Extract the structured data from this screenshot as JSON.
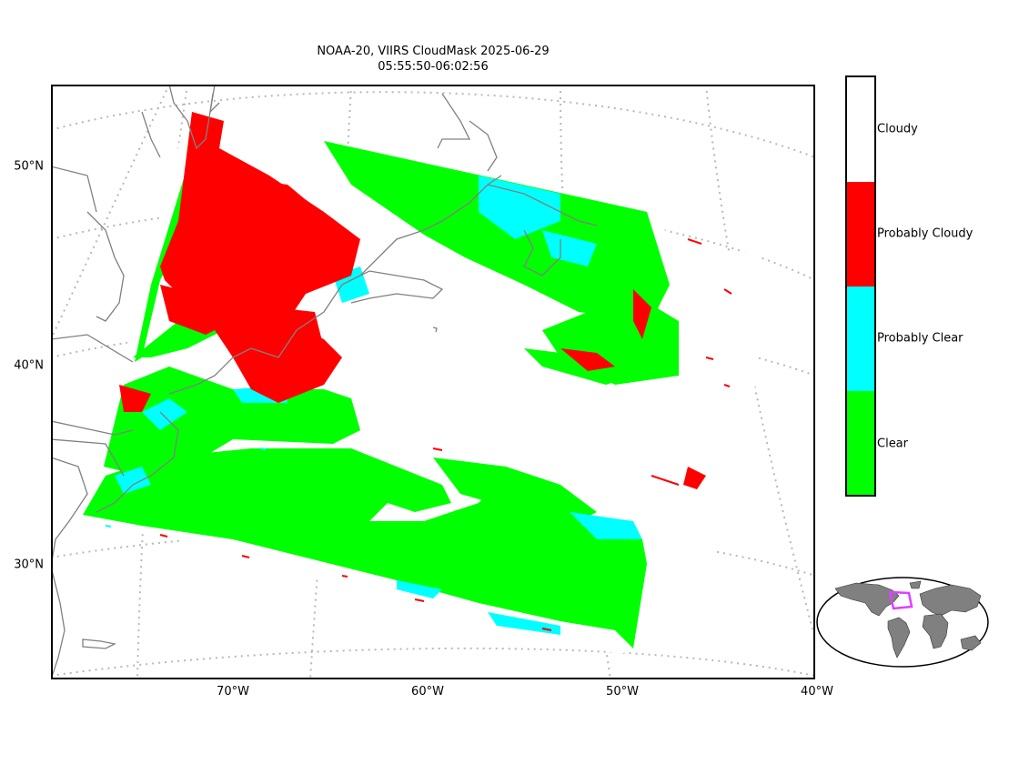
{
  "title": {
    "line1": "NOAA-20, VIIRS CloudMask 2025-06-29",
    "line2": "05:55:50-06:02:56"
  },
  "map": {
    "lat_ticks": [
      "50°N",
      "40°N",
      "30°N"
    ],
    "lon_ticks": [
      "70°W",
      "60°W",
      "50°W",
      "40°W"
    ],
    "graticule": "dotted grey",
    "coastline_color": "#808080"
  },
  "legend": {
    "classes": [
      {
        "label": "Cloudy",
        "color": "#ffffff"
      },
      {
        "label": "Probably Cloudy",
        "color": "#ff0000"
      },
      {
        "label": "Probably Clear",
        "color": "#00ffff"
      },
      {
        "label": "Clear",
        "color": "#00ff00"
      }
    ]
  },
  "inset": {
    "highlight_color": "#e040ff",
    "land_color": "#808080"
  }
}
